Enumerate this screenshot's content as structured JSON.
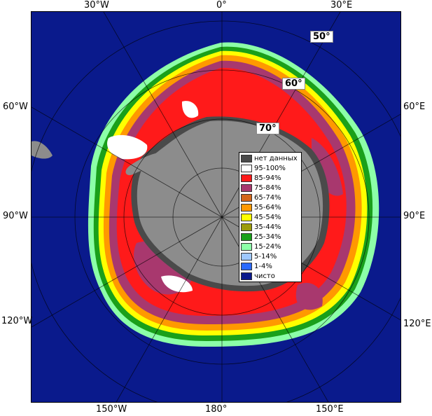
{
  "top_labels": [
    "30°W",
    "0°",
    "30°E"
  ],
  "bottom_labels": [
    "150°W",
    "180°",
    "150°E"
  ],
  "left_labels": [
    "60°W",
    "90°W",
    "120°W"
  ],
  "right_labels": [
    "60°E",
    "90°E",
    "120°E"
  ],
  "lat_labels": [
    "50°",
    "60°",
    "70°"
  ],
  "legend": [
    {
      "label": "нет данных",
      "color": "#4a4a4a"
    },
    {
      "label": "95-100%",
      "color": "#ffffff"
    },
    {
      "label": "85-94%",
      "color": "#ff1a1a"
    },
    {
      "label": "75-84%",
      "color": "#a8386e"
    },
    {
      "label": "65-74%",
      "color": "#d4661a"
    },
    {
      "label": "55-64%",
      "color": "#ff9900"
    },
    {
      "label": "45-54%",
      "color": "#ffff00"
    },
    {
      "label": "35-44%",
      "color": "#9c9c0a"
    },
    {
      "label": "25-34%",
      "color": "#1aa01a"
    },
    {
      "label": "15-24%",
      "color": "#8cffa8"
    },
    {
      "label": "5-14%",
      "color": "#9ec8ff"
    },
    {
      "label": "1-4%",
      "color": "#2a6aff"
    },
    {
      "label": "чисто",
      "color": "#0a1a8c"
    }
  ],
  "colors": {
    "ocean": "#0a1a8c",
    "land": "#8c8c8c",
    "ice_shelf": "#6a6a6a",
    "grid": "#6f7fb0"
  }
}
